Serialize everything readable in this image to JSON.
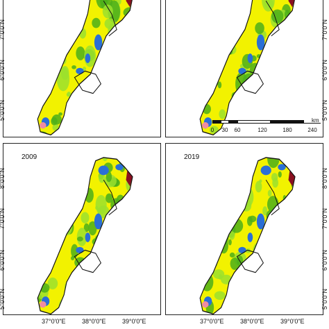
{
  "panels": [
    {
      "label": ""
    },
    {
      "label": ""
    },
    {
      "label": "2009"
    },
    {
      "label": "2019"
    }
  ],
  "latitude_labels_right_top": [
    "7°0'0\"N",
    "6°0'0\"N",
    "5°0'0\"N"
  ],
  "latitude_labels_left_top": [
    "7°0'0\"N",
    "6°0'0\"N",
    "5°0'0\"N"
  ],
  "latitude_labels_right_bottom": [
    "8°0'0\"N",
    "7°0'0\"N",
    "6°0'0\"N",
    "5°0'0\"N"
  ],
  "latitude_labels_left_bottom": [
    "8°0'0\"N",
    "7°0'0\"N",
    "6°0'0\"N",
    "5°0'0\"N"
  ],
  "longitude_labels": [
    "37°0'0\"E",
    "38°0'0\"E",
    "39°0'0\"E"
  ],
  "scale_bar": {
    "unit": "km",
    "ticks": [
      "0",
      "30",
      "60",
      "120",
      "180",
      "240"
    ]
  },
  "colors": {
    "land_yellow": "#f2f200",
    "forest_green": "#4caf1a",
    "light_green": "#9be02e",
    "water_blue": "#2a6fd6",
    "urban_pink": "#f08ca0",
    "bare_red": "#8a1020",
    "boundary": "#111111"
  }
}
